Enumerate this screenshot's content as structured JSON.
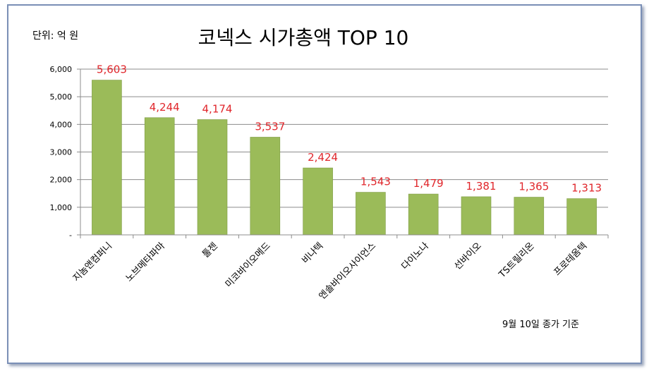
{
  "chart_data": {
    "type": "bar",
    "title": "코넥스 시가총액 TOP 10",
    "unit_label": "단위: 억 원",
    "footnote": "9월 10일 종가 기준",
    "categories": [
      "지놈앤컴퍼니",
      "노브메타파마",
      "툴젠",
      "미코바이오메드",
      "비나텍",
      "엔솔바이오사이언스",
      "다이노나",
      "선바이오",
      "TS트릴리온",
      "프로테옴텍"
    ],
    "values": [
      5603,
      4244,
      4174,
      3537,
      2424,
      1543,
      1479,
      1381,
      1365,
      1313
    ],
    "value_labels": [
      "5,603",
      "4,244",
      "4,174",
      "3,537",
      "2,424",
      "1,543",
      "1,479",
      "1,381",
      "1,365",
      "1,313"
    ],
    "y_ticks": [
      0,
      1000,
      2000,
      3000,
      4000,
      5000,
      6000
    ],
    "y_tick_labels": [
      "-",
      "1,000",
      "2,000",
      "3,000",
      "4,000",
      "5,000",
      "6,000"
    ],
    "ylim": [
      0,
      6000
    ],
    "grid": true,
    "legend": "none",
    "colors": {
      "bar": "#9bbb59",
      "bar_edge": "#7f9c45",
      "value_label": "#e0262b",
      "grid": "#8c8c8c"
    }
  }
}
